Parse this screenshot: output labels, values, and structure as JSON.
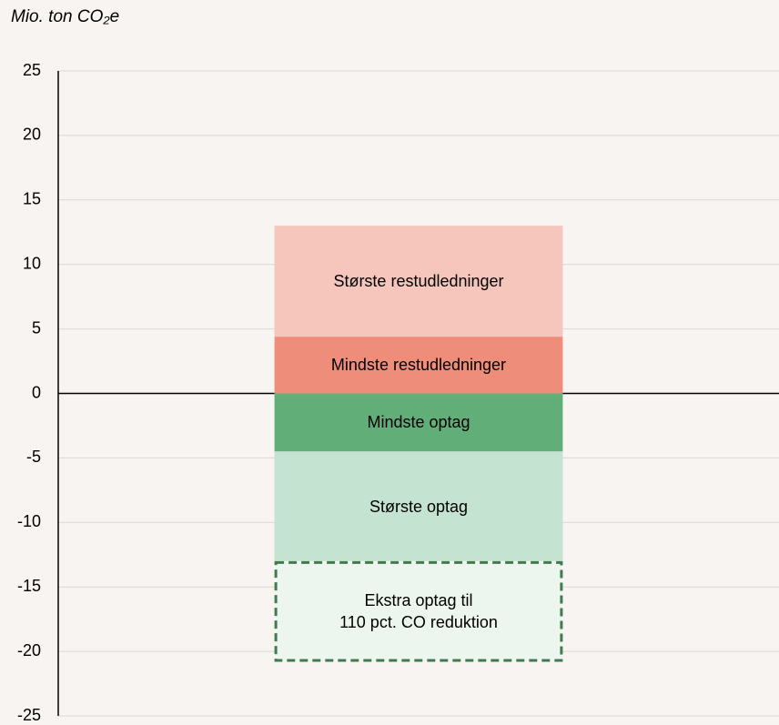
{
  "chart_data": {
    "type": "stacked_bar",
    "y_label": "Mio. ton CO₂e",
    "categories": [
      null
    ],
    "series": [
      {
        "name": "Mindste restudledninger",
        "color": "#ef8d7b",
        "values": [
          4.4
        ]
      },
      {
        "name": "Største restudledninger",
        "color": "#f6c6bc",
        "values": [
          8.6
        ]
      },
      {
        "name": "Mindste optag",
        "color": "#62ae78",
        "values": [
          -4.5
        ]
      },
      {
        "name": "Største optag",
        "color": "#c5e3d1",
        "values": [
          -8.5
        ]
      },
      {
        "name": "Ekstra optag til\n110 pct. CO reduktion",
        "color": "#edf5ef",
        "values": [
          -7.8
        ],
        "dashed": true,
        "border_color": "#3f7c4d"
      }
    ],
    "ylim": [
      -25,
      25
    ],
    "yticks": [
      -25,
      -20,
      -15,
      -10,
      -5,
      0,
      5,
      10,
      15,
      20,
      25
    ],
    "grid": true
  }
}
